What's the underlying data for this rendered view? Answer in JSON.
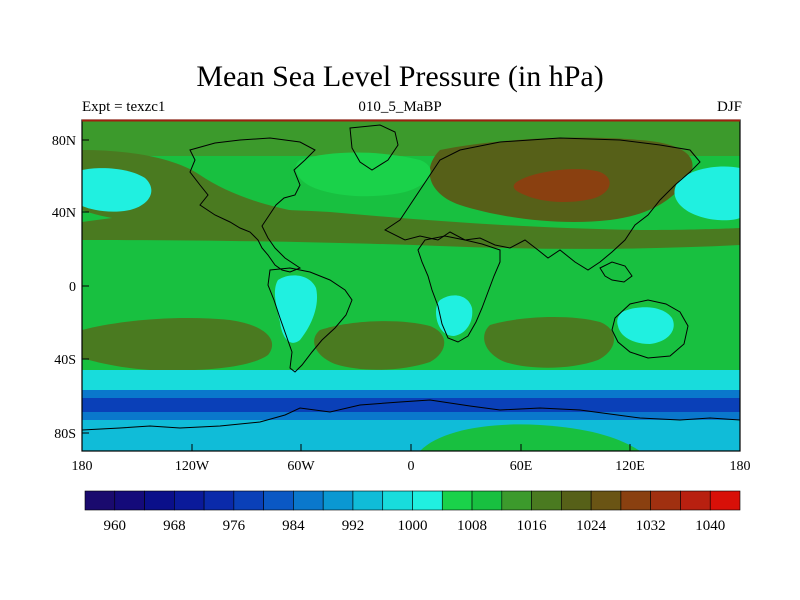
{
  "chart_data": {
    "type": "heatmap",
    "title": "Mean Sea Level Pressure (in hPa)",
    "subtitle_left": "Expt = texzc1",
    "subtitle_center": "010_5_MaBP",
    "subtitle_right": "DJF",
    "xlim": [
      -180,
      180
    ],
    "ylim": [
      -90,
      90
    ],
    "xticks": [
      -180,
      -120,
      -60,
      0,
      60,
      120,
      180
    ],
    "xtick_labels": [
      "180",
      "120W",
      "60W",
      "0",
      "60E",
      "120E",
      "180"
    ],
    "yticks": [
      80,
      40,
      0,
      -40,
      -80
    ],
    "ytick_labels": [
      "80N",
      "40N",
      "0",
      "40S",
      "80S"
    ],
    "colorbar_levels": [
      956,
      960,
      964,
      968,
      972,
      976,
      980,
      984,
      988,
      992,
      996,
      1000,
      1004,
      1008,
      1012,
      1016,
      1020,
      1024,
      1028,
      1032,
      1036,
      1040
    ],
    "colorbar_labels": [
      "960",
      "968",
      "976",
      "984",
      "992",
      "1000",
      "1008",
      "1016",
      "1024",
      "1032",
      "1040"
    ],
    "colorbar_colors": [
      "#1a0a6e",
      "#140a7a",
      "#0a0f8a",
      "#0a1a9a",
      "#0a2aaa",
      "#0a40b8",
      "#0a58c4",
      "#0a78cc",
      "#0a98d2",
      "#10bcd8",
      "#18dcdc",
      "#20f0e0",
      "#1ad24a",
      "#18c040",
      "#3c9a2c",
      "#4a7a20",
      "#566018",
      "#6a5414",
      "#8a4010",
      "#a03010",
      "#b82010",
      "#d81008"
    ],
    "fields": {
      "background_value": 1009,
      "regions": [
        {
          "name": "north-arctic-band",
          "value": 1014
        },
        {
          "name": "atlantic-subtropical-high",
          "value": 1017
        },
        {
          "name": "pacific-subtropical-high-north",
          "value": 1017
        },
        {
          "name": "siberian-high",
          "value": 1022
        },
        {
          "name": "siberian-high-core",
          "value": 1028
        },
        {
          "name": "aleutian-low",
          "value": 1001
        },
        {
          "name": "icelandic-low",
          "value": 1006
        },
        {
          "name": "south-pacific-high",
          "value": 1016
        },
        {
          "name": "south-atlantic-high",
          "value": 1016
        },
        {
          "name": "indian-ocean-high",
          "value": 1016
        },
        {
          "name": "south-america-low",
          "value": 1001
        },
        {
          "name": "africa-low",
          "value": 1001
        },
        {
          "name": "australia-low",
          "value": 1001
        },
        {
          "name": "southern-ocean-trough-edge",
          "value": 996
        },
        {
          "name": "southern-ocean-trough",
          "value": 986
        },
        {
          "name": "southern-ocean-trough-core",
          "value": 978
        },
        {
          "name": "antarctic-edge",
          "value": 993
        },
        {
          "name": "antarctic-high",
          "value": 1009
        }
      ]
    }
  }
}
